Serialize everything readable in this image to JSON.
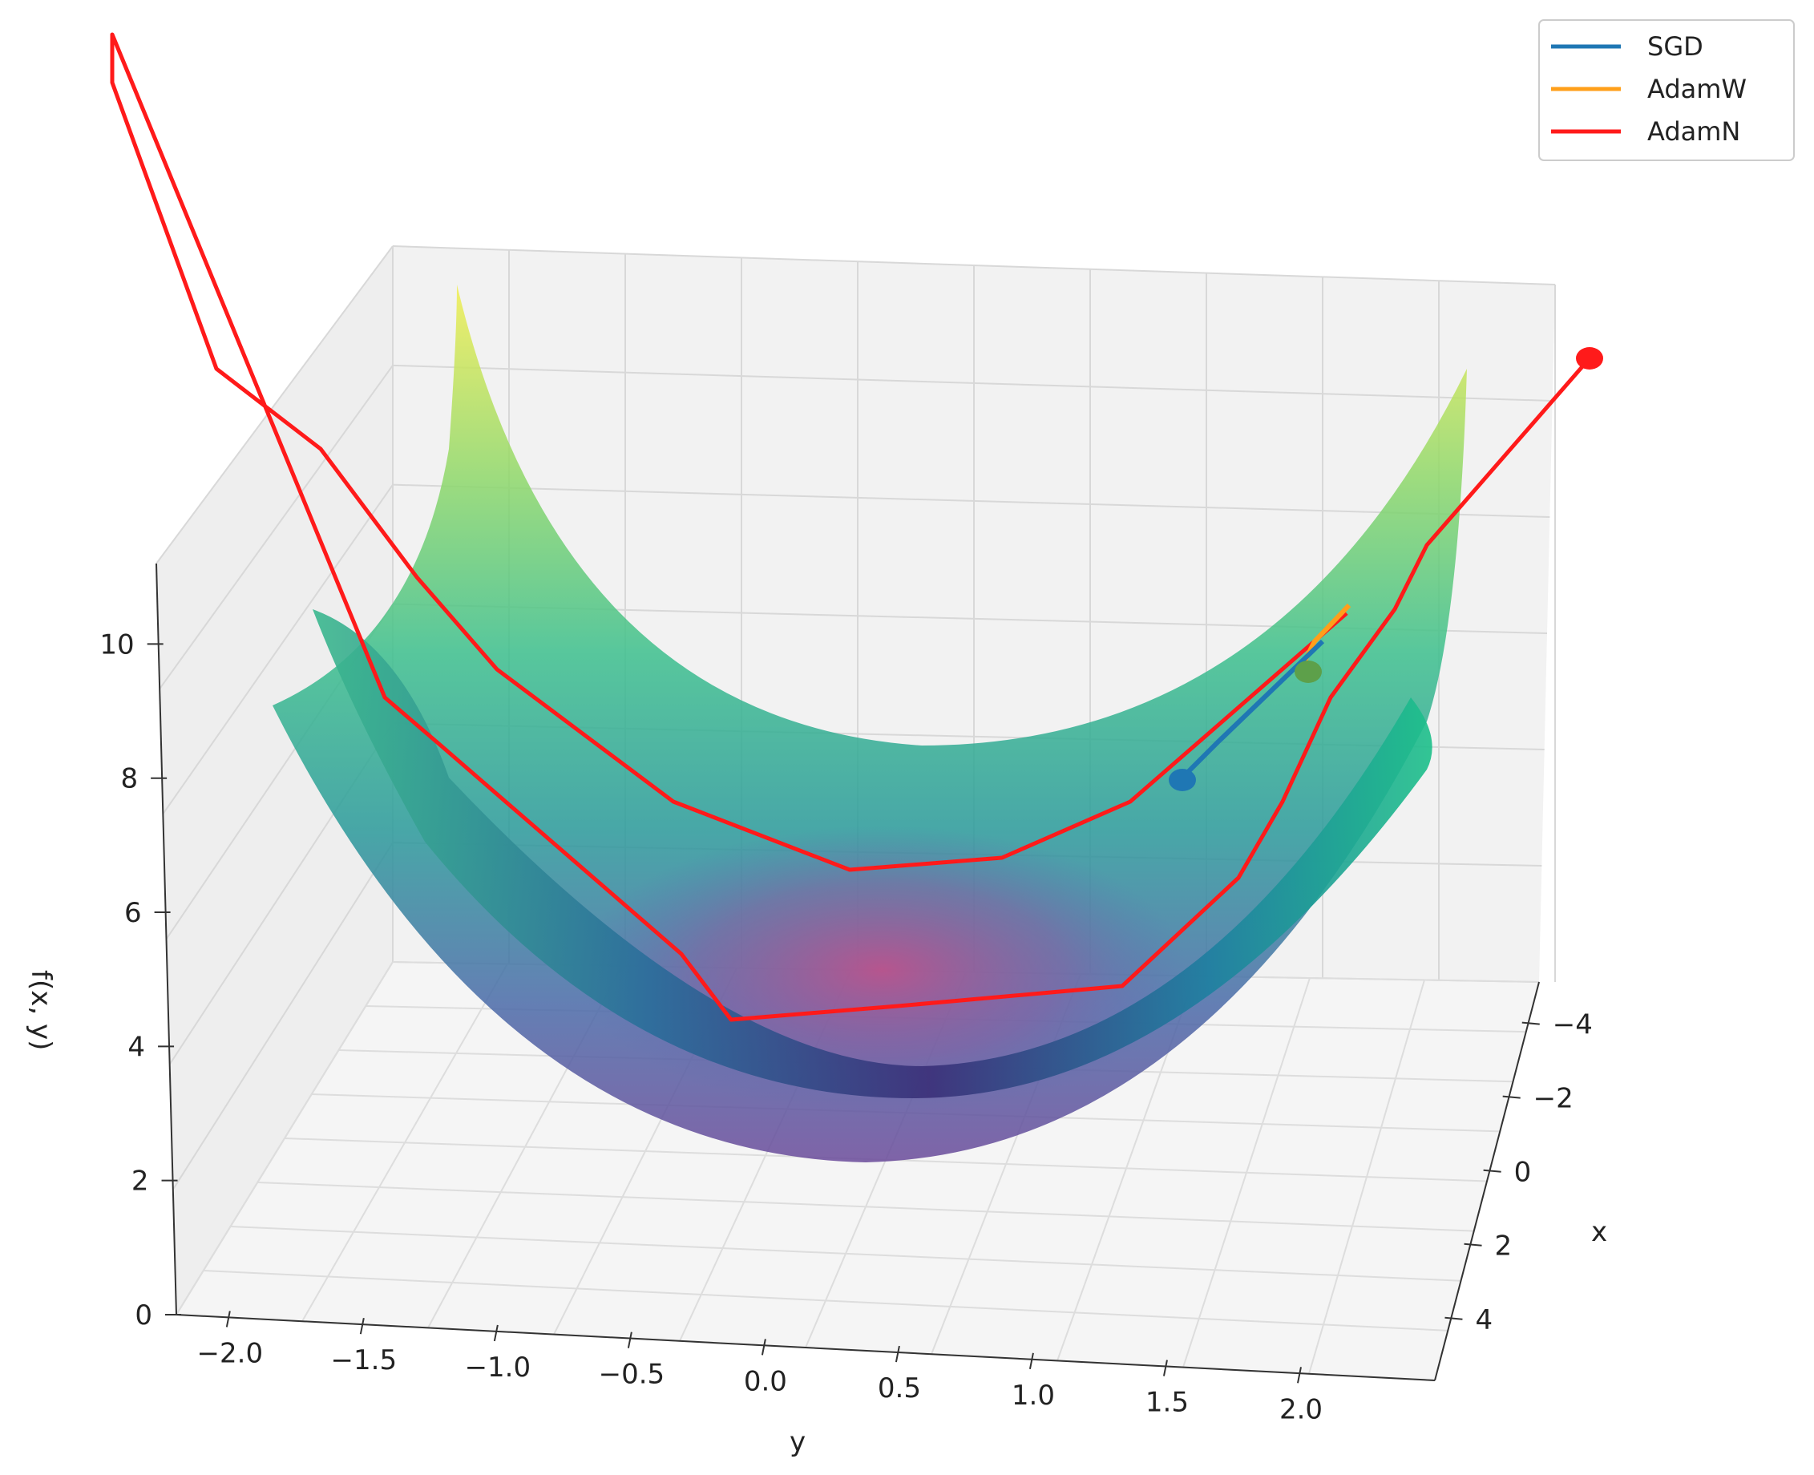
{
  "chart_data": {
    "type": "surface3d",
    "function_label": "f(x, y)",
    "xlabel": "x",
    "ylabel": "y",
    "zlabel": "f(x, y)",
    "x_ticks": [
      "−4",
      "−2",
      "0",
      "2",
      "4"
    ],
    "y_ticks": [
      "−2.0",
      "−1.5",
      "−1.0",
      "−0.5",
      "0.0",
      "0.5",
      "1.0",
      "1.5",
      "2.0"
    ],
    "z_ticks": [
      "0",
      "2",
      "4",
      "6",
      "8",
      "10"
    ],
    "xlim": [
      -5,
      5
    ],
    "ylim": [
      -2.2,
      2.2
    ],
    "zlim": [
      0,
      11
    ],
    "grid": true,
    "colormap": "viridis",
    "legend_position": "top-right",
    "series": [
      {
        "name": "SGD",
        "color": "#1f77b4"
      },
      {
        "name": "AdamW",
        "color": "#ff9f1a"
      },
      {
        "name": "AdamN",
        "color": "#ff1a1a"
      }
    ]
  }
}
